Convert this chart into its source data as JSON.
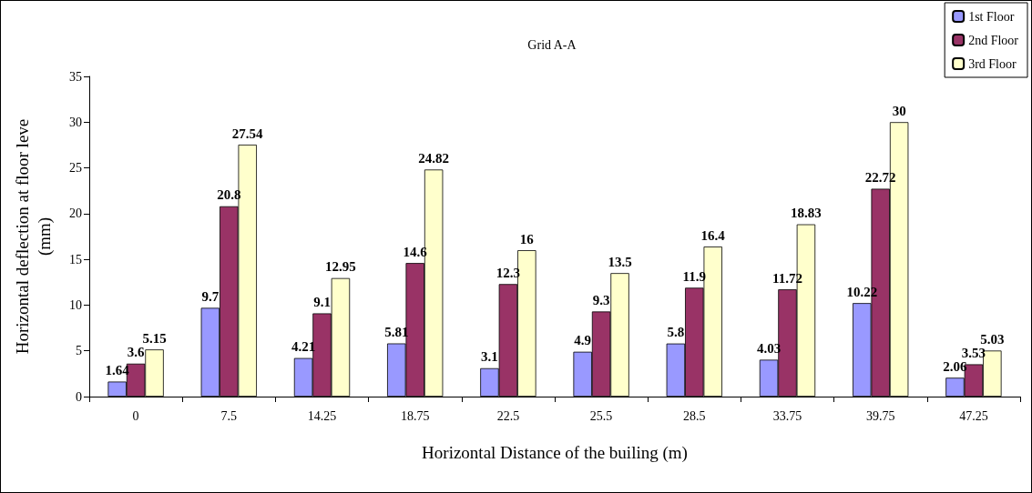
{
  "chart_data": {
    "type": "bar",
    "title": "Grid A-A",
    "xlabel": "Horizontal Distance of the builing (m)",
    "ylabel": "Horizontal deflection at floor leve\n(mm)",
    "categories": [
      "0",
      "7.5",
      "14.25",
      "18.75",
      "22.5",
      "25.5",
      "28.5",
      "33.75",
      "39.75",
      "47.25"
    ],
    "series": [
      {
        "name": "1st Floor",
        "color": "#9999ff",
        "values": [
          1.64,
          9.7,
          4.21,
          5.81,
          3.1,
          4.9,
          5.8,
          4.03,
          10.22,
          2.06
        ]
      },
      {
        "name": "2nd Floor",
        "color": "#993366",
        "values": [
          3.6,
          20.8,
          9.1,
          14.6,
          12.3,
          9.3,
          11.9,
          11.72,
          22.72,
          3.53
        ]
      },
      {
        "name": "3rd Floor",
        "color": "#ffffcc",
        "values": [
          5.15,
          27.54,
          12.95,
          24.82,
          16,
          13.5,
          16.4,
          18.83,
          30,
          5.03
        ]
      }
    ],
    "ylim": [
      0,
      35
    ],
    "yticks": [
      0,
      5,
      10,
      15,
      20,
      25,
      30,
      35
    ],
    "grid": false,
    "legend": "top right",
    "data_labels": true
  }
}
